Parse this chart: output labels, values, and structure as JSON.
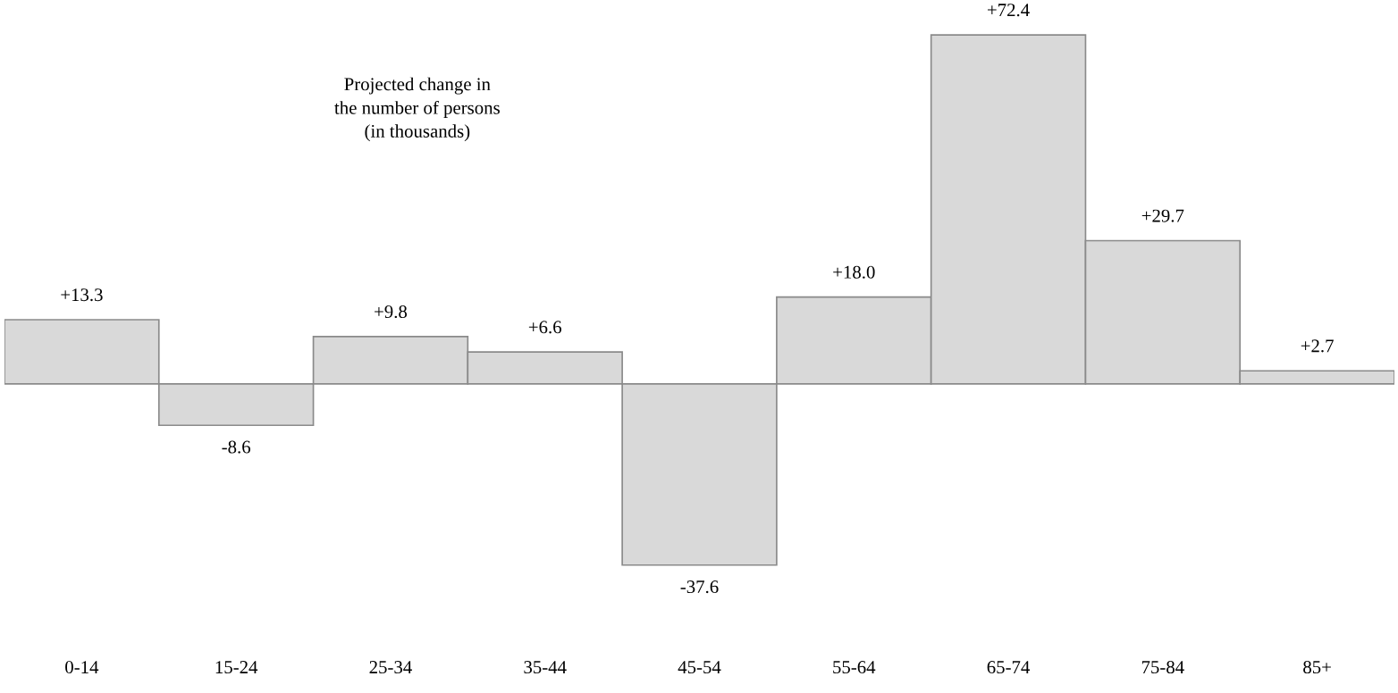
{
  "chart_data": {
    "type": "bar",
    "title": "Projected change in\nthe number of persons\n(in thousands)",
    "categories": [
      "0-14",
      "15-24",
      "25-34",
      "35-44",
      "45-54",
      "55-64",
      "65-74",
      "75-84",
      "85+"
    ],
    "values": [
      13.3,
      -8.6,
      9.8,
      6.6,
      -37.6,
      18.0,
      72.4,
      29.7,
      2.7
    ],
    "value_labels": [
      "+13.3",
      "-8.6",
      "+9.8",
      "+6.6",
      "-37.6",
      "+18.0",
      "+72.4",
      "+29.7",
      "+2.7"
    ],
    "color": "#d9d9d9",
    "grid": false,
    "legend": false
  }
}
